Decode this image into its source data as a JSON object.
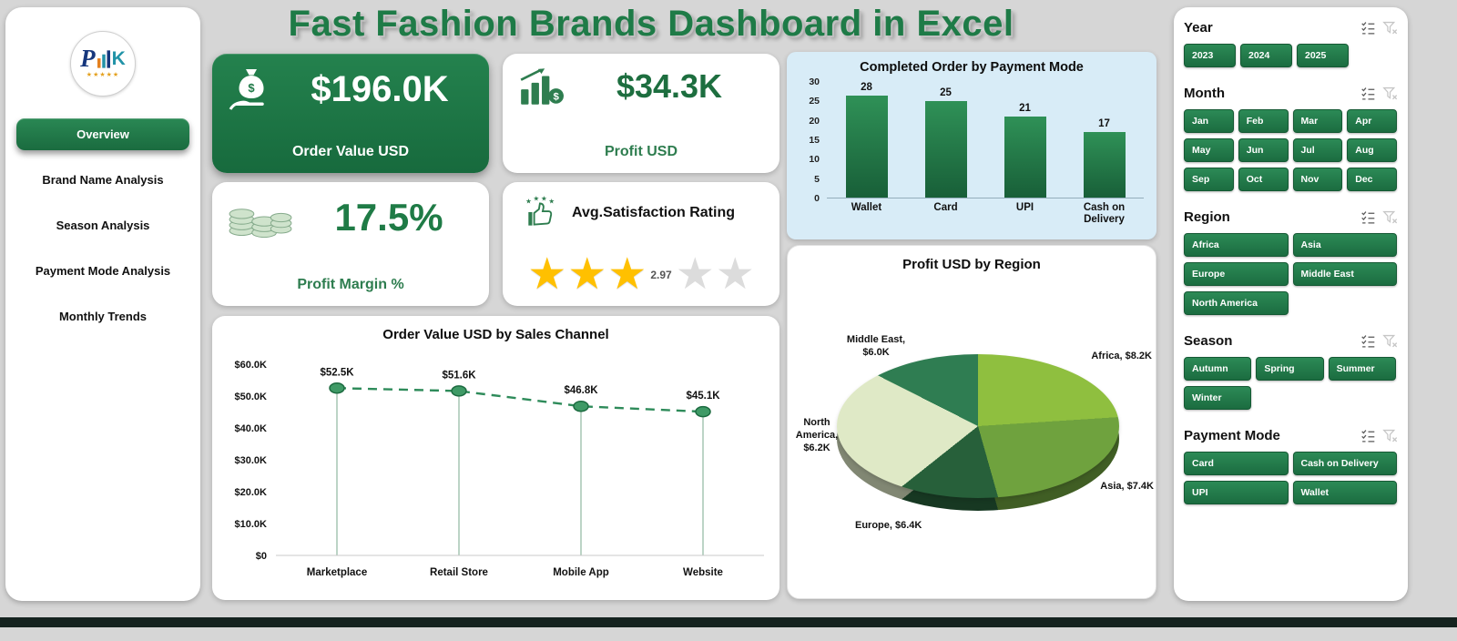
{
  "title": "Fast Fashion Brands Dashboard in Excel",
  "logo": {
    "p": "P",
    "k": "K",
    "stars": "★★★★★"
  },
  "sidebar": {
    "items": [
      {
        "label": "Overview",
        "active": true
      },
      {
        "label": "Brand Name Analysis",
        "active": false
      },
      {
        "label": "Season Analysis",
        "active": false
      },
      {
        "label": "Payment Mode Analysis",
        "active": false
      },
      {
        "label": "Monthly Trends",
        "active": false
      }
    ]
  },
  "kpis": {
    "order_value": {
      "value": "$196.0K",
      "label": "Order Value USD"
    },
    "profit": {
      "value": "$34.3K",
      "label": "Profit USD"
    },
    "profit_margin": {
      "value": "17.5%",
      "label": "Profit Margin %"
    },
    "satisfaction": {
      "title": "Avg.Satisfaction Rating",
      "rating": "2.97",
      "stars_filled": 3,
      "stars_total": 5
    }
  },
  "chart_data": [
    {
      "type": "line",
      "title": "Order Value USD by Sales Channel",
      "categories": [
        "Marketplace",
        "Retail Store",
        "Mobile App",
        "Website"
      ],
      "values": [
        52.5,
        51.6,
        46.8,
        45.1
      ],
      "data_labels": [
        "$52.5K",
        "$51.6K",
        "$46.8K",
        "$45.1K"
      ],
      "ylim": [
        0,
        60
      ],
      "yticks": [
        0,
        10,
        20,
        30,
        40,
        50,
        60
      ],
      "ytick_labels": [
        "$0",
        "$10.0K",
        "$20.0K",
        "$30.0K",
        "$40.0K",
        "$50.0K",
        "$60.0K"
      ],
      "line_color": "#2e8b5a",
      "line_style": "dashed",
      "grid": false,
      "legend": "none"
    },
    {
      "type": "bar",
      "title": "Completed Order by Payment Mode",
      "categories": [
        "Wallet",
        "Card",
        "UPI",
        "Cash on Delivery"
      ],
      "values": [
        28,
        25,
        21,
        17
      ],
      "ylim": [
        0,
        30
      ],
      "yticks": [
        0,
        5,
        10,
        15,
        20,
        25,
        30
      ],
      "bar_color": "#1f7a48",
      "background": "#d8ecf7",
      "grid": false,
      "legend": "none"
    },
    {
      "type": "pie",
      "title": "Profit USD by Region",
      "labels": [
        "Africa",
        "Asia",
        "Europe",
        "North America",
        "Middle East"
      ],
      "values": [
        8.2,
        7.4,
        6.4,
        6.2,
        6.0
      ],
      "data_labels": [
        "Africa, $8.2K",
        "Asia, $7.4K",
        "Europe, $6.4K",
        "North America, $6.2K",
        "Middle East, $6.0K"
      ],
      "colors": [
        "#8fbf3f",
        "#6fa23e",
        "#27603a",
        "#dfe9c6",
        "#2f7d52"
      ],
      "effect": "3d",
      "legend": "none"
    }
  ],
  "slicers": [
    {
      "title": "Year",
      "items": [
        "2023",
        "2024",
        "2025"
      ]
    },
    {
      "title": "Month",
      "items": [
        "Jan",
        "Feb",
        "Mar",
        "Apr",
        "May",
        "Jun",
        "Jul",
        "Aug",
        "Sep",
        "Oct",
        "Nov",
        "Dec"
      ]
    },
    {
      "title": "Region",
      "items": [
        "Africa",
        "Asia",
        "Europe",
        "Middle East",
        "North America"
      ]
    },
    {
      "title": "Season",
      "items": [
        "Autumn",
        "Spring",
        "Summer",
        "Winter"
      ]
    },
    {
      "title": "Payment Mode",
      "items": [
        "Card",
        "Cash on Delivery",
        "UPI",
        "Wallet"
      ]
    }
  ],
  "colors": {
    "accent_green": "#1f7a48",
    "title_green": "#1e7b47",
    "star_gold": "#FFC000",
    "star_gray": "#DCDCDC",
    "bar_card_bg": "#d8ecf7"
  }
}
